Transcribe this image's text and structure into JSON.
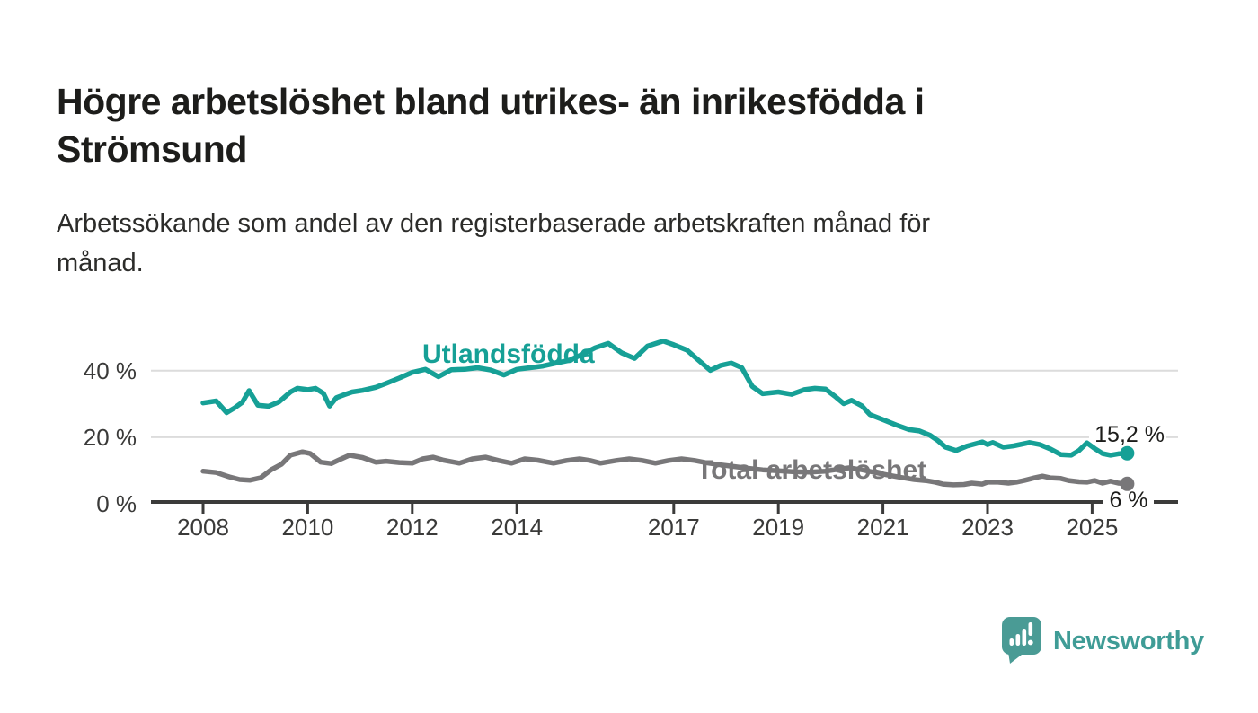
{
  "header": {
    "title_lines": [
      "Högre arbetslöshet bland utrikes- än inrikesfödda i",
      "Strömsund"
    ],
    "subtitle_lines": [
      "Arbetssökande som andel av den registerbaserade arbetskraften månad för",
      "månad."
    ]
  },
  "chart_data": {
    "type": "line",
    "title": "Högre arbetslöshet bland utrikes- än inrikesfödda i Strömsund",
    "subtitle": "Arbetssökande som andel av den registerbaserade arbetskraften månad för månad.",
    "xlabel": "",
    "ylabel": "",
    "y_unit": "%",
    "x_unit": "year",
    "ylim": [
      0,
      52
    ],
    "xlim": [
      2007.0,
      2026.6
    ],
    "grid": "horizontal",
    "legend_position": "inline-labels",
    "colors": {
      "grid": "#dcdcdc",
      "axis": "#3b3b3a",
      "tick_label": "#3a3a39",
      "annotation_text": "#1d1d1b"
    },
    "y_ticks": [
      {
        "value": 40,
        "label": "40 %"
      },
      {
        "value": 20,
        "label": "20 %"
      },
      {
        "value": 0,
        "label": "0 %"
      }
    ],
    "x_ticks": [
      {
        "value": 2008,
        "label": "2008"
      },
      {
        "value": 2010,
        "label": "2010"
      },
      {
        "value": 2012,
        "label": "2012"
      },
      {
        "value": 2014,
        "label": "2014"
      },
      {
        "value": 2017,
        "label": "2017"
      },
      {
        "value": 2019,
        "label": "2019"
      },
      {
        "value": 2021,
        "label": "2021"
      },
      {
        "value": 2023,
        "label": "2023"
      },
      {
        "value": 2025,
        "label": "2025"
      }
    ],
    "series": [
      {
        "name": "Utlandsfödda",
        "color": "#16a096",
        "end_label": "15,2 %",
        "end_value": 15.2,
        "points": [
          [
            2008.0,
            30.3
          ],
          [
            2008.25,
            30.9
          ],
          [
            2008.45,
            27.4
          ],
          [
            2008.6,
            28.8
          ],
          [
            2008.75,
            30.5
          ],
          [
            2008.88,
            34.0
          ],
          [
            2009.05,
            29.6
          ],
          [
            2009.25,
            29.3
          ],
          [
            2009.45,
            30.6
          ],
          [
            2009.67,
            33.6
          ],
          [
            2009.8,
            34.7
          ],
          [
            2010.0,
            34.3
          ],
          [
            2010.15,
            34.7
          ],
          [
            2010.3,
            33.2
          ],
          [
            2010.42,
            29.4
          ],
          [
            2010.55,
            31.9
          ],
          [
            2010.7,
            32.8
          ],
          [
            2010.85,
            33.6
          ],
          [
            2011.05,
            34.1
          ],
          [
            2011.3,
            35.0
          ],
          [
            2011.5,
            36.2
          ],
          [
            2011.75,
            37.8
          ],
          [
            2012.0,
            39.5
          ],
          [
            2012.25,
            40.4
          ],
          [
            2012.5,
            38.2
          ],
          [
            2012.75,
            40.3
          ],
          [
            2013.0,
            40.4
          ],
          [
            2013.25,
            40.9
          ],
          [
            2013.5,
            40.2
          ],
          [
            2013.75,
            38.7
          ],
          [
            2014.0,
            40.4
          ],
          [
            2014.25,
            40.9
          ],
          [
            2014.5,
            41.4
          ],
          [
            2014.75,
            42.3
          ],
          [
            2015.0,
            43.1
          ],
          [
            2015.25,
            44.9
          ],
          [
            2015.5,
            46.9
          ],
          [
            2015.75,
            48.2
          ],
          [
            2016.0,
            45.4
          ],
          [
            2016.25,
            43.7
          ],
          [
            2016.5,
            47.4
          ],
          [
            2016.8,
            48.9
          ],
          [
            2017.0,
            47.8
          ],
          [
            2017.25,
            46.2
          ],
          [
            2017.5,
            42.8
          ],
          [
            2017.7,
            40.1
          ],
          [
            2017.9,
            41.6
          ],
          [
            2018.1,
            42.3
          ],
          [
            2018.3,
            40.9
          ],
          [
            2018.5,
            35.3
          ],
          [
            2018.7,
            33.1
          ],
          [
            2019.0,
            33.6
          ],
          [
            2019.25,
            32.9
          ],
          [
            2019.5,
            34.3
          ],
          [
            2019.7,
            34.7
          ],
          [
            2019.9,
            34.5
          ],
          [
            2020.1,
            32.1
          ],
          [
            2020.25,
            30.1
          ],
          [
            2020.4,
            31.1
          ],
          [
            2020.6,
            29.4
          ],
          [
            2020.75,
            26.8
          ],
          [
            2021.0,
            25.3
          ],
          [
            2021.25,
            23.7
          ],
          [
            2021.5,
            22.3
          ],
          [
            2021.7,
            21.9
          ],
          [
            2021.9,
            20.6
          ],
          [
            2022.05,
            19.0
          ],
          [
            2022.2,
            17.0
          ],
          [
            2022.4,
            16.0
          ],
          [
            2022.6,
            17.3
          ],
          [
            2022.9,
            18.6
          ],
          [
            2023.0,
            17.8
          ],
          [
            2023.1,
            18.4
          ],
          [
            2023.3,
            17.0
          ],
          [
            2023.5,
            17.4
          ],
          [
            2023.8,
            18.4
          ],
          [
            2024.0,
            17.8
          ],
          [
            2024.2,
            16.5
          ],
          [
            2024.4,
            14.8
          ],
          [
            2024.6,
            14.6
          ],
          [
            2024.75,
            16.0
          ],
          [
            2024.9,
            18.3
          ],
          [
            2025.05,
            16.6
          ],
          [
            2025.2,
            15.1
          ],
          [
            2025.35,
            14.6
          ],
          [
            2025.5,
            15.0
          ],
          [
            2025.67,
            15.2
          ]
        ]
      },
      {
        "name": "Total arbetslöshet",
        "color": "#787779",
        "end_label": "6 %",
        "end_value": 6.0,
        "points": [
          [
            2008.0,
            9.8
          ],
          [
            2008.25,
            9.4
          ],
          [
            2008.5,
            8.1
          ],
          [
            2008.7,
            7.3
          ],
          [
            2008.9,
            7.1
          ],
          [
            2009.1,
            7.8
          ],
          [
            2009.3,
            10.2
          ],
          [
            2009.5,
            11.9
          ],
          [
            2009.67,
            14.6
          ],
          [
            2009.9,
            15.6
          ],
          [
            2010.05,
            15.1
          ],
          [
            2010.25,
            12.5
          ],
          [
            2010.45,
            12.1
          ],
          [
            2010.6,
            13.2
          ],
          [
            2010.8,
            14.6
          ],
          [
            2011.05,
            13.9
          ],
          [
            2011.3,
            12.5
          ],
          [
            2011.5,
            12.8
          ],
          [
            2011.75,
            12.4
          ],
          [
            2012.0,
            12.2
          ],
          [
            2012.2,
            13.5
          ],
          [
            2012.4,
            14.0
          ],
          [
            2012.6,
            13.1
          ],
          [
            2012.9,
            12.2
          ],
          [
            2013.15,
            13.5
          ],
          [
            2013.4,
            14.0
          ],
          [
            2013.65,
            13.0
          ],
          [
            2013.9,
            12.2
          ],
          [
            2014.15,
            13.5
          ],
          [
            2014.4,
            13.1
          ],
          [
            2014.7,
            12.2
          ],
          [
            2014.95,
            13.0
          ],
          [
            2015.2,
            13.5
          ],
          [
            2015.4,
            13.0
          ],
          [
            2015.6,
            12.2
          ],
          [
            2015.9,
            13.0
          ],
          [
            2016.15,
            13.5
          ],
          [
            2016.4,
            13.0
          ],
          [
            2016.65,
            12.2
          ],
          [
            2016.9,
            13.0
          ],
          [
            2017.15,
            13.5
          ],
          [
            2017.4,
            13.0
          ],
          [
            2017.6,
            12.4
          ],
          [
            2017.85,
            11.8
          ],
          [
            2018.1,
            11.3
          ],
          [
            2018.4,
            10.7
          ],
          [
            2018.7,
            10.2
          ],
          [
            2019.0,
            9.9
          ],
          [
            2019.3,
            9.6
          ],
          [
            2019.6,
            9.5
          ],
          [
            2019.9,
            9.8
          ],
          [
            2020.15,
            10.4
          ],
          [
            2020.35,
            10.8
          ],
          [
            2020.6,
            10.2
          ],
          [
            2020.85,
            9.4
          ],
          [
            2021.1,
            8.6
          ],
          [
            2021.35,
            7.9
          ],
          [
            2021.6,
            7.3
          ],
          [
            2021.85,
            6.9
          ],
          [
            2022.0,
            6.5
          ],
          [
            2022.15,
            5.9
          ],
          [
            2022.35,
            5.7
          ],
          [
            2022.55,
            5.8
          ],
          [
            2022.7,
            6.2
          ],
          [
            2022.9,
            5.9
          ],
          [
            2023.0,
            6.5
          ],
          [
            2023.2,
            6.5
          ],
          [
            2023.4,
            6.2
          ],
          [
            2023.55,
            6.5
          ],
          [
            2023.7,
            7.0
          ],
          [
            2023.9,
            7.8
          ],
          [
            2024.05,
            8.3
          ],
          [
            2024.2,
            7.8
          ],
          [
            2024.4,
            7.6
          ],
          [
            2024.55,
            7.0
          ],
          [
            2024.75,
            6.6
          ],
          [
            2024.9,
            6.5
          ],
          [
            2025.05,
            7.0
          ],
          [
            2025.2,
            6.2
          ],
          [
            2025.35,
            6.8
          ],
          [
            2025.5,
            6.2
          ],
          [
            2025.67,
            6.0
          ]
        ]
      }
    ]
  },
  "branding": {
    "logo_text": "Newsworthy",
    "logo_color": "#4a9b95",
    "logo_icon": "speech-bubble-bar-chart"
  }
}
